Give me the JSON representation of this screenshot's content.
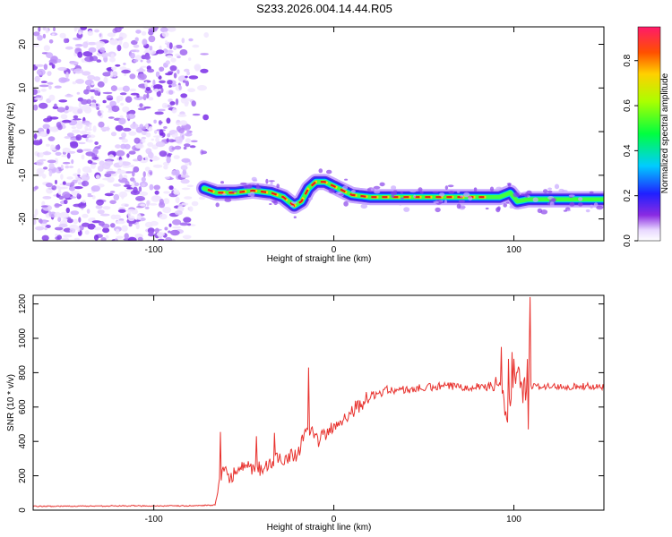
{
  "title": "S233.2026.004.14.44.R05",
  "chart_data": [
    {
      "type": "heatmap",
      "xlabel": "Height of straight line (km)",
      "ylabel": "Frequency (Hz)",
      "xlim": [
        -167,
        150
      ],
      "ylim": [
        -25,
        24
      ],
      "xticks": [
        {
          "v": -100,
          "label": "-100"
        },
        {
          "v": 0,
          "label": "0"
        },
        {
          "v": 100,
          "label": "100"
        }
      ],
      "yticks": [
        {
          "v": -20,
          "label": "-20"
        },
        {
          "v": -10,
          "label": "-10"
        },
        {
          "v": 0,
          "label": "0"
        },
        {
          "v": 10,
          "label": "10"
        },
        {
          "v": 20,
          "label": "20"
        }
      ],
      "noise_region_x": [
        -167,
        -70
      ],
      "ridge": {
        "x": [
          -72,
          -65,
          -55,
          -45,
          -35,
          -28,
          -22,
          -18,
          -14,
          -10,
          -5,
          0,
          5,
          10,
          20,
          40,
          60,
          80,
          92,
          98,
          102,
          108,
          130,
          150
        ],
        "y": [
          -13,
          -14,
          -14,
          -13.5,
          -14,
          -15,
          -17,
          -16,
          -13,
          -11.5,
          -11.5,
          -12.5,
          -13.5,
          -14.5,
          -15,
          -15,
          -15,
          -15,
          -15,
          -14,
          -16,
          -15.5,
          -15.5,
          -15.5
        ]
      },
      "colorbar": {
        "label": "Normalized spectral amplitude",
        "range": [
          0,
          0.95
        ],
        "ticks": [
          {
            "v": 0.0,
            "label": "0.0"
          },
          {
            "v": 0.2,
            "label": "0.2"
          },
          {
            "v": 0.4,
            "label": "0.4"
          },
          {
            "v": 0.6,
            "label": "0.6"
          },
          {
            "v": 0.8,
            "label": "0.8"
          }
        ]
      }
    },
    {
      "type": "line",
      "xlabel": "Height of straight line (km)",
      "ylabel": "SNR (10 * v/v)",
      "xlim": [
        -167,
        150
      ],
      "ylim": [
        0,
        1250
      ],
      "xticks": [
        {
          "v": -100,
          "label": "-100"
        },
        {
          "v": 0,
          "label": "0"
        },
        {
          "v": 100,
          "label": "100"
        }
      ],
      "yticks": [
        {
          "v": 0,
          "label": "0"
        },
        {
          "v": 200,
          "label": "200"
        },
        {
          "v": 400,
          "label": "400"
        },
        {
          "v": 600,
          "label": "600"
        },
        {
          "v": 800,
          "label": "800"
        },
        {
          "v": 1000,
          "label": "1000"
        },
        {
          "v": 1200,
          "label": "1200"
        }
      ],
      "series": [
        {
          "name": "SNR",
          "color": "#e8322e",
          "x": [
            -167,
            -120,
            -80,
            -66,
            -62,
            -58,
            -50,
            -40,
            -30,
            -20,
            -15,
            -10,
            0,
            10,
            20,
            30,
            40,
            60,
            80,
            92,
            95,
            98,
            100,
            104,
            107,
            108,
            110,
            120,
            130,
            140,
            150
          ],
          "y": [
            22,
            25,
            25,
            30,
            220,
            200,
            240,
            240,
            300,
            330,
            500,
            400,
            480,
            580,
            660,
            700,
            700,
            720,
            720,
            720,
            600,
            560,
            800,
            720,
            680,
            1000,
            720,
            720,
            720,
            720,
            720
          ]
        }
      ],
      "spikes": [
        {
          "x": -63,
          "y": 455
        },
        {
          "x": -43,
          "y": 430
        },
        {
          "x": -33,
          "y": 450
        },
        {
          "x": -14,
          "y": 830
        },
        {
          "x": 93,
          "y": 950
        },
        {
          "x": 97,
          "y": 880
        },
        {
          "x": 99,
          "y": 920
        },
        {
          "x": 109,
          "y": 1240
        },
        {
          "x": 108,
          "y": 470
        }
      ]
    }
  ]
}
